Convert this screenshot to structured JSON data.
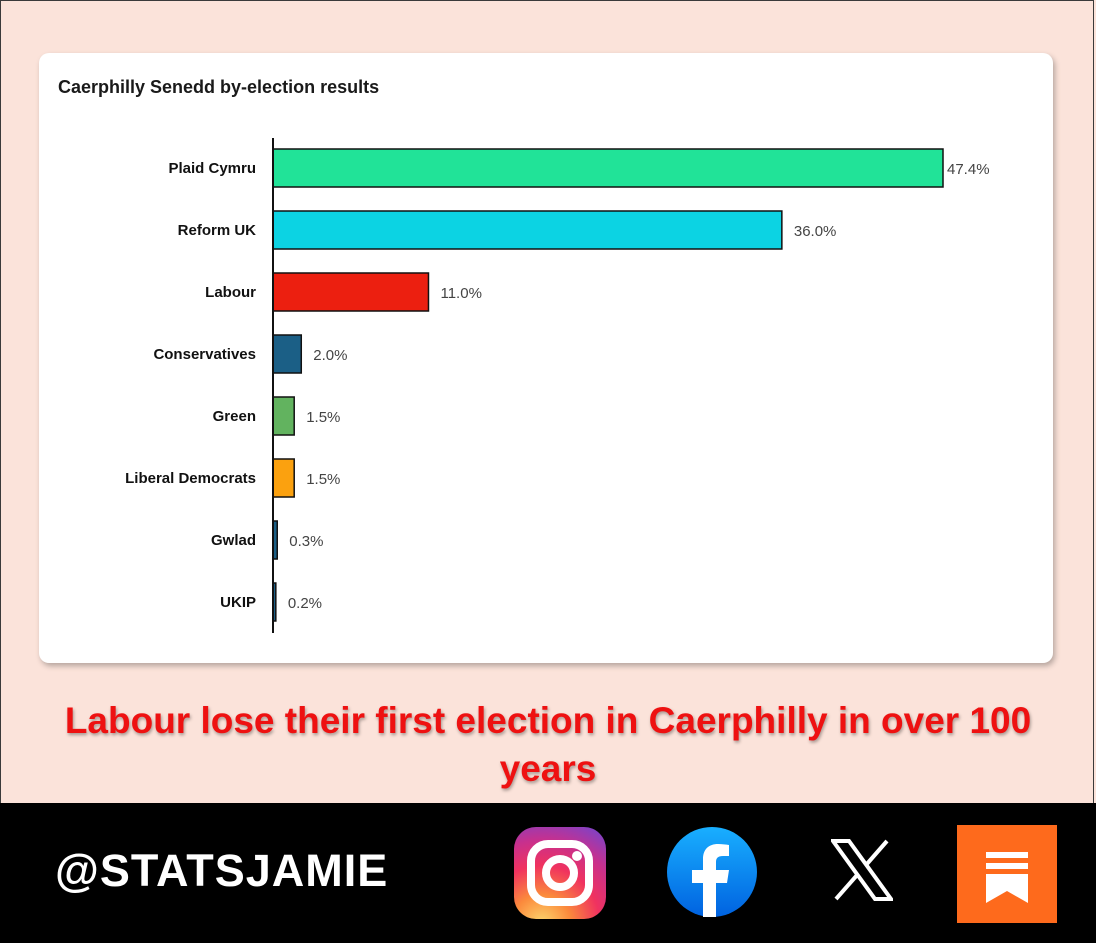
{
  "chart_data": {
    "type": "bar",
    "orientation": "horizontal",
    "title": "Caerphilly Senedd by-election results",
    "xlabel": "",
    "ylabel": "",
    "categories": [
      "Plaid Cymru",
      "Reform UK",
      "Labour",
      "Conservatives",
      "Green",
      "Liberal Democrats",
      "Gwlad",
      "UKIP"
    ],
    "values": [
      47.4,
      36.0,
      11.0,
      2.0,
      1.5,
      1.5,
      0.3,
      0.2
    ],
    "value_labels": [
      "47.4%",
      "36.0%",
      "11.0%",
      "2.0%",
      "1.5%",
      "1.5%",
      "0.3%",
      "0.2%"
    ],
    "colors": [
      "#21e398",
      "#0cd3e3",
      "#ec1f10",
      "#1b5f86",
      "#62b35f",
      "#fba10f",
      "#1b5f86",
      "#1b5f86"
    ],
    "xlim": [
      0,
      47.4
    ],
    "grid": false,
    "legend": "none"
  },
  "headline": "Labour lose their first election in Caerphilly in over 100 years",
  "footer": {
    "handle": "@STATSJAMIE",
    "icons": [
      "instagram-icon",
      "facebook-icon",
      "x-icon",
      "substack-icon"
    ]
  },
  "colors": {
    "background": "#fbe3da",
    "headline": "#ee1111",
    "footer": "#000000",
    "substack": "#fe6a1c"
  }
}
